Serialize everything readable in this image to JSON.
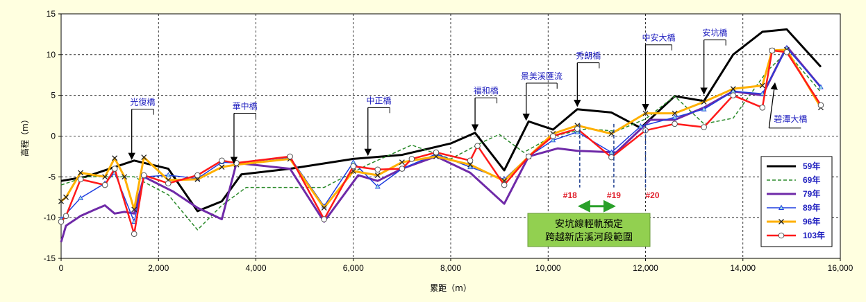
{
  "chart_data": {
    "type": "line",
    "title": "",
    "xlabel": "累距（m）",
    "ylabel": "高程（m）",
    "xlim": [
      0,
      16000
    ],
    "ylim": [
      -15,
      15
    ],
    "xticks": [
      0,
      2000,
      4000,
      6000,
      8000,
      10000,
      12000,
      14000,
      16000
    ],
    "xtick_labels": [
      "0",
      "2,000",
      "4,000",
      "6,000",
      "8,000",
      "10,000",
      "12,000",
      "14,000",
      "16,000"
    ],
    "yticks": [
      -15,
      -10,
      -5,
      0,
      5,
      10,
      15
    ],
    "grid": true,
    "legend_position": "right",
    "series": [
      {
        "name": "59年",
        "color": "#000000",
        "style": "solid",
        "marker": "none",
        "width": 3,
        "x": [
          0,
          500,
          1500,
          2200,
          2800,
          3300,
          3700,
          4700,
          6000,
          7000,
          8000,
          8500,
          9100,
          9600,
          10100,
          10600,
          11300,
          11900,
          12600,
          13200,
          13800,
          14400,
          14900,
          15600
        ],
        "y": [
          -5.5,
          -5.0,
          -3.0,
          -4.0,
          -9.2,
          -8.0,
          -4.7,
          -4.0,
          -2.8,
          -2.3,
          -0.9,
          0.4,
          -4.2,
          1.8,
          0.8,
          3.3,
          2.9,
          1.0,
          4.9,
          4.3,
          10.0,
          12.8,
          13.1,
          8.5
        ]
      },
      {
        "name": "69年",
        "color": "#2a8a2a",
        "style": "dashed",
        "marker": "none",
        "width": 1.5,
        "x": [
          0,
          500,
          1000,
          1500,
          2200,
          2800,
          3300,
          3800,
          5400,
          6300,
          7200,
          8000,
          8700,
          9000,
          9500,
          10100,
          10800,
          11400,
          12000,
          12600,
          13200,
          13800,
          14500,
          14900,
          15600
        ],
        "y": [
          -6.0,
          -5.0,
          -5.0,
          -5.0,
          -7.2,
          -11.5,
          -8.5,
          -6.3,
          -6.3,
          -3.5,
          -1.1,
          -2.8,
          -0.6,
          0.2,
          -2.0,
          0.0,
          0.9,
          0.6,
          2.1,
          4.9,
          1.5,
          2.2,
          8.0,
          10.3,
          5.4
        ]
      },
      {
        "name": "79年",
        "color": "#6f2aa8",
        "style": "solid",
        "marker": "none",
        "width": 3,
        "x": [
          0,
          100,
          400,
          700,
          900,
          1100,
          1300,
          1500,
          1700,
          2300,
          2800,
          3300,
          3600,
          4700,
          5400,
          6100,
          6500,
          7000,
          7700,
          8400,
          9100,
          9600,
          10200,
          10600,
          11400,
          12100,
          12600,
          13200,
          13800,
          14400,
          14900,
          15600
        ],
        "y": [
          -13.0,
          -11.0,
          -9.8,
          -9.0,
          -8.5,
          -9.5,
          -9.3,
          -9.5,
          -5.0,
          -6.8,
          -8.8,
          -10.2,
          -3.3,
          -4.0,
          -10.5,
          -4.8,
          -5.5,
          -4.0,
          -2.5,
          -4.5,
          -8.3,
          -2.5,
          -1.5,
          -1.8,
          -2.0,
          2.0,
          2.0,
          3.5,
          5.5,
          5.0,
          11.0,
          6.0
        ]
      },
      {
        "name": "89年",
        "color": "#1f3fe0",
        "style": "solid",
        "marker": "triangle",
        "width": 1.5,
        "x": [
          0,
          400,
          900,
          1100,
          1500,
          1700,
          2200,
          2800,
          3300,
          3600,
          4700,
          5400,
          6000,
          6500,
          7000,
          7700,
          8400,
          9100,
          9600,
          10100,
          10600,
          11300,
          11900,
          12600,
          13200,
          13800,
          14400,
          14900,
          15600
        ],
        "y": [
          -10.2,
          -7.6,
          -5.8,
          -4.5,
          -10.5,
          -5.0,
          -4.8,
          -5.2,
          -3.2,
          -3.3,
          -2.6,
          -8.6,
          -3.2,
          -6.2,
          -4.0,
          -2.2,
          -3.8,
          -5.3,
          -2.5,
          -0.5,
          0.5,
          -2.0,
          1.2,
          2.3,
          3.3,
          5.5,
          5.2,
          10.8,
          6.0
        ]
      },
      {
        "name": "96年",
        "color": "#ffb000",
        "style": "solid",
        "marker": "x",
        "width": 3,
        "x": [
          0,
          100,
          400,
          900,
          1100,
          1300,
          1500,
          1700,
          2200,
          2800,
          3300,
          3600,
          4700,
          5400,
          6000,
          6500,
          7000,
          7700,
          8400,
          9100,
          9600,
          10100,
          10600,
          11300,
          12000,
          12600,
          13200,
          13800,
          14400,
          14600,
          14900,
          15600
        ],
        "y": [
          -8.0,
          -7.5,
          -4.5,
          -5.0,
          -2.7,
          -5.0,
          -9.0,
          -2.6,
          -5.4,
          -5.3,
          -3.8,
          -3.5,
          -2.8,
          -8.8,
          -4.3,
          -4.8,
          -3.2,
          -2.5,
          -3.5,
          -5.5,
          -2.5,
          0.3,
          1.3,
          0.3,
          2.8,
          2.8,
          4.2,
          5.8,
          6.2,
          10.5,
          10.6,
          3.5
        ]
      },
      {
        "name": "103年",
        "color": "#ff1a1a",
        "style": "solid",
        "marker": "circle",
        "width": 2.5,
        "x": [
          0,
          100,
          400,
          900,
          1100,
          1500,
          1700,
          2200,
          2800,
          3300,
          3600,
          4700,
          5400,
          6000,
          6500,
          7000,
          7200,
          7700,
          8400,
          8550,
          9100,
          9600,
          10100,
          10600,
          11300,
          12000,
          12600,
          13200,
          13800,
          14400,
          14600,
          14900,
          15600
        ],
        "y": [
          -10.5,
          -9.8,
          -5.3,
          -6.0,
          -4.0,
          -12.0,
          -4.8,
          -5.8,
          -4.8,
          -3.0,
          -3.3,
          -2.5,
          -10.2,
          -3.7,
          -4.1,
          -4.0,
          -2.8,
          -2.0,
          -3.0,
          -1.2,
          -6.0,
          -2.5,
          0.0,
          0.9,
          -2.6,
          0.7,
          1.5,
          1.1,
          5.0,
          3.5,
          10.5,
          10.3,
          3.8
        ]
      }
    ],
    "annotations": [
      {
        "text": "光復橋",
        "x": 1450,
        "y": 3.3,
        "target_x": 1450,
        "target_y": -3.0
      },
      {
        "text": "華中橋",
        "x": 3550,
        "y": 2.8,
        "target_x": 3550,
        "target_y": -3.5
      },
      {
        "text": "中正橋",
        "x": 6300,
        "y": 3.5,
        "target_x": 6300,
        "target_y": -2.5
      },
      {
        "text": "福和橋",
        "x": 8500,
        "y": 4.7,
        "target_x": 8500,
        "target_y": 0.5
      },
      {
        "text": "景美溪匯流",
        "x": 9550,
        "y": 6.5,
        "target_x": 9550,
        "target_y": 1.8
      },
      {
        "text": "秀朗橋",
        "x": 10600,
        "y": 9.0,
        "target_x": 10600,
        "target_y": 3.5
      },
      {
        "text": "中安大橋",
        "x": 12000,
        "y": 11.2,
        "target_x": 12000,
        "target_y": 3.0
      },
      {
        "text": "安坑橋",
        "x": 13200,
        "y": 11.8,
        "target_x": 13200,
        "target_y": 5.0
      },
      {
        "text": "碧潭大橋",
        "x": 14650,
        "y": 1.5,
        "target_x": 14650,
        "target_y": 6.5
      }
    ],
    "sections": [
      {
        "label": "#18",
        "x": 10650
      },
      {
        "label": "#19",
        "x": 11350
      },
      {
        "label": "#20",
        "x": 12000
      }
    ],
    "note": [
      "安坑線輕軌預定",
      "跨越新店溪河段範圍"
    ]
  }
}
